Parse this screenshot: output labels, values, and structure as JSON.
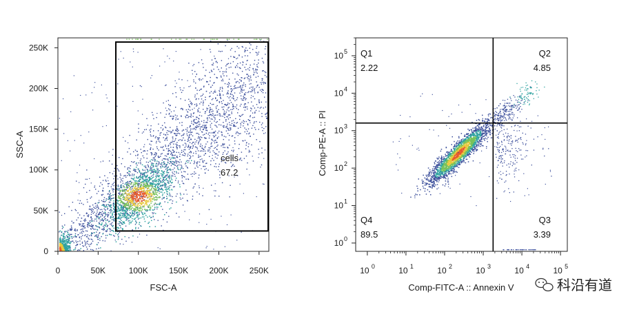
{
  "chart_data": [
    {
      "type": "scatter",
      "xlabel": "FSC-A",
      "ylabel": "SSC-A",
      "xlim": [
        0,
        262144
      ],
      "ylim": [
        0,
        262144
      ],
      "x_scale": "linear",
      "y_scale": "linear",
      "x_tick_values": [
        0,
        50000,
        100000,
        150000,
        200000,
        250000
      ],
      "x_tick_labels": [
        "0",
        "50K",
        "100K",
        "150K",
        "200K",
        "250K"
      ],
      "y_tick_values": [
        0,
        50000,
        100000,
        150000,
        200000,
        250000
      ],
      "y_tick_labels": [
        "0",
        "50K",
        "100K",
        "150K",
        "200K",
        "250K"
      ],
      "gate": {
        "name": "cells",
        "percent": "67.2",
        "x_range": [
          72000,
          262144
        ],
        "y_range": [
          25000,
          257000
        ]
      },
      "density_colors": [
        "#3b4e9b",
        "#2fa3a0",
        "#78c25a",
        "#e8c83a",
        "#e85a2c"
      ]
    },
    {
      "type": "scatter",
      "xlabel": "Comp-FITC-A :: Annexin V",
      "ylabel": "Comp-PE-A :: PI",
      "x_scale": "log",
      "y_scale": "log",
      "xlim": [
        0.5,
        150000
      ],
      "ylim": [
        0.6,
        300000
      ],
      "x_tick_values": [
        1,
        10,
        100,
        1000,
        10000,
        100000
      ],
      "x_tick_labels": [
        {
          "base": "10",
          "exp": "0"
        },
        {
          "base": "10",
          "exp": "1"
        },
        {
          "base": "10",
          "exp": "2"
        },
        {
          "base": "10",
          "exp": "3"
        },
        {
          "base": "10",
          "exp": "4"
        },
        {
          "base": "10",
          "exp": "5"
        }
      ],
      "y_tick_values": [
        1,
        10,
        100,
        1000,
        10000,
        100000
      ],
      "y_tick_labels": [
        {
          "base": "10",
          "exp": "0"
        },
        {
          "base": "10",
          "exp": "1"
        },
        {
          "base": "10",
          "exp": "2"
        },
        {
          "base": "10",
          "exp": "3"
        },
        {
          "base": "10",
          "exp": "4"
        },
        {
          "base": "10",
          "exp": "5"
        }
      ],
      "quadrant_x": 1800,
      "quadrant_y": 1600,
      "quadrants": [
        {
          "name": "Q1",
          "percent": "2.22"
        },
        {
          "name": "Q2",
          "percent": "4.85"
        },
        {
          "name": "Q3",
          "percent": "3.39"
        },
        {
          "name": "Q4",
          "percent": "89.5"
        }
      ],
      "density_colors": [
        "#3b4e9b",
        "#2fa3a0",
        "#78c25a",
        "#e8c83a",
        "#e85a2c"
      ]
    }
  ],
  "watermark": {
    "icon": "wechat-icon",
    "text": "科沿有道"
  }
}
